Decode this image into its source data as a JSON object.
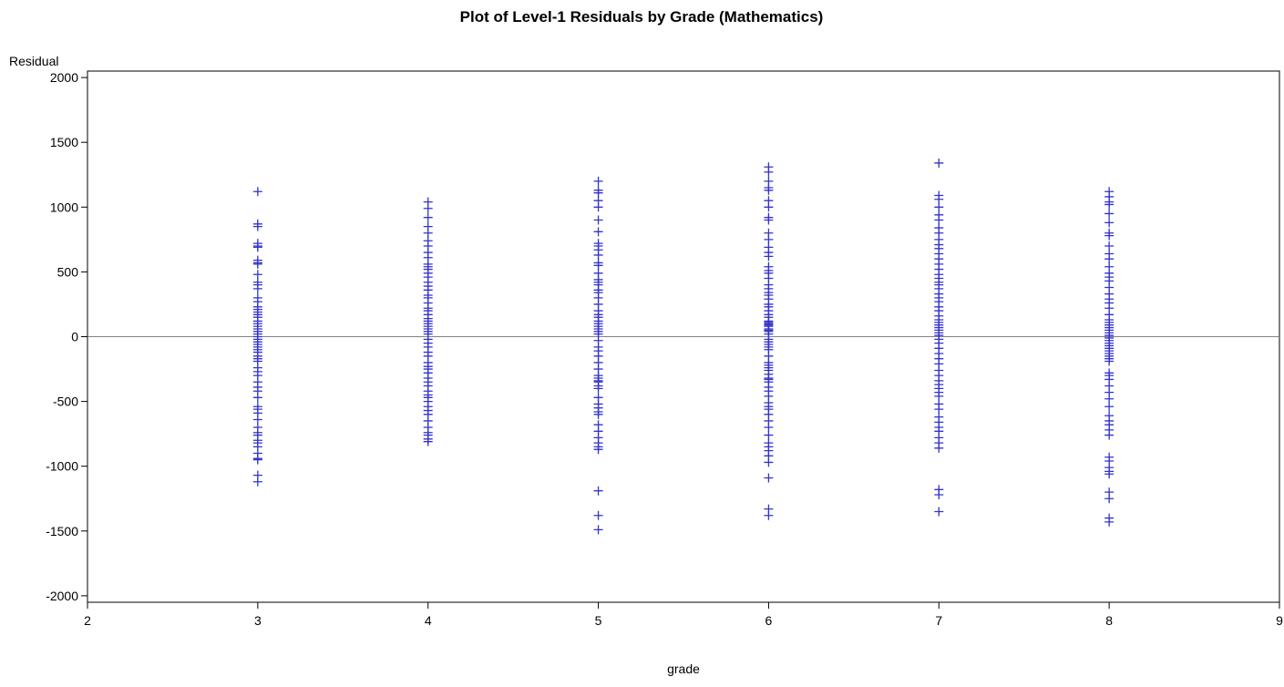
{
  "chart_data": {
    "type": "scatter",
    "title": "Plot of Level-1 Residuals by Grade (Mathematics)",
    "xlabel": "grade",
    "ylabel": "Residual",
    "xlim": [
      2,
      9
    ],
    "ylim": [
      -2050,
      2050
    ],
    "xticks": [
      "2",
      "3",
      "4",
      "5",
      "6",
      "7",
      "8",
      "9"
    ],
    "yticks": [
      "2000",
      "1500",
      "1000",
      "500",
      "0",
      "-500",
      "-1000",
      "-1500",
      "-2000"
    ],
    "reference_line_y": 0,
    "grid": false,
    "legend": "none",
    "marker": "plus",
    "colors": {
      "marker": "#3333cc",
      "reference_line": "#808080",
      "axis": "#000000"
    },
    "series": [
      {
        "values_by_grade": [
          {
            "x": 3,
            "y": [
              1120,
              870,
              850,
              720,
              700,
              690,
              590,
              570,
              560,
              480,
              420,
              400,
              370,
              300,
              270,
              230,
              210,
              190,
              170,
              150,
              120,
              100,
              80,
              60,
              40,
              20,
              0,
              -20,
              -40,
              -60,
              -80,
              -100,
              -120,
              -150,
              -170,
              -190,
              -240,
              -270,
              -300,
              -350,
              -390,
              -420,
              -470,
              -540,
              -560,
              -590,
              -640,
              -700,
              -740,
              -760,
              -800,
              -820,
              -850,
              -900,
              -940,
              -950,
              -1070,
              -1120
            ]
          },
          {
            "x": 4,
            "y": [
              1040,
              990,
              920,
              850,
              800,
              740,
              700,
              650,
              610,
              560,
              540,
              520,
              490,
              460,
              420,
              390,
              360,
              320,
              300,
              260,
              220,
              200,
              170,
              140,
              120,
              100,
              80,
              60,
              40,
              20,
              -20,
              -50,
              -80,
              -120,
              -150,
              -200,
              -230,
              -250,
              -280,
              -320,
              -350,
              -380,
              -420,
              -450,
              -470,
              -500,
              -540,
              -570,
              -600,
              -650,
              -700,
              -740,
              -760,
              -790,
              -810
            ]
          },
          {
            "x": 5,
            "y": [
              1200,
              1130,
              1110,
              1050,
              1000,
              900,
              810,
              720,
              700,
              670,
              630,
              570,
              550,
              490,
              440,
              420,
              400,
              360,
              340,
              300,
              250,
              200,
              170,
              150,
              120,
              100,
              80,
              60,
              40,
              20,
              -30,
              -80,
              -110,
              -150,
              -200,
              -250,
              -300,
              -320,
              -340,
              -350,
              -380,
              -400,
              -470,
              -520,
              -550,
              -580,
              -600,
              -680,
              -730,
              -780,
              -820,
              -850,
              -870,
              -1190,
              -1380,
              -1490
            ]
          },
          {
            "x": 6,
            "y": [
              1310,
              1270,
              1200,
              1150,
              1130,
              1050,
              1000,
              920,
              900,
              800,
              750,
              690,
              650,
              620,
              540,
              510,
              490,
              450,
              400,
              370,
              340,
              320,
              290,
              250,
              230,
              200,
              170,
              150,
              120,
              110,
              100,
              90,
              80,
              60,
              50,
              40,
              20,
              -20,
              -40,
              -60,
              -80,
              -100,
              -150,
              -200,
              -220,
              -240,
              -260,
              -290,
              -320,
              -330,
              -350,
              -390,
              -420,
              -460,
              -510,
              -540,
              -560,
              -600,
              -650,
              -700,
              -760,
              -820,
              -850,
              -880,
              -920,
              -970,
              -1090,
              -1330,
              -1380
            ]
          },
          {
            "x": 7,
            "y": [
              1340,
              1090,
              1060,
              1000,
              940,
              900,
              840,
              800,
              750,
              710,
              680,
              640,
              600,
              560,
              520,
              480,
              450,
              420,
              400,
              370,
              330,
              300,
              270,
              230,
              200,
              160,
              130,
              110,
              90,
              70,
              50,
              30,
              10,
              -20,
              -50,
              -90,
              -130,
              -170,
              -210,
              -260,
              -300,
              -340,
              -370,
              -400,
              -430,
              -460,
              -520,
              -560,
              -620,
              -660,
              -700,
              -730,
              -780,
              -820,
              -860,
              -1180,
              -1220,
              -1350
            ]
          },
          {
            "x": 8,
            "y": [
              1120,
              1080,
              1040,
              1020,
              950,
              880,
              800,
              780,
              700,
              640,
              600,
              540,
              490,
              460,
              430,
              380,
              330,
              290,
              260,
              220,
              170,
              130,
              110,
              90,
              70,
              50,
              30,
              10,
              -10,
              -30,
              -50,
              -70,
              -90,
              -110,
              -130,
              -150,
              -170,
              -190,
              -280,
              -300,
              -330,
              -380,
              -430,
              -480,
              -540,
              -610,
              -650,
              -680,
              -720,
              -760,
              -930,
              -960,
              -1010,
              -1040,
              -1060,
              -1200,
              -1250,
              -1400,
              -1430
            ]
          }
        ]
      }
    ]
  }
}
